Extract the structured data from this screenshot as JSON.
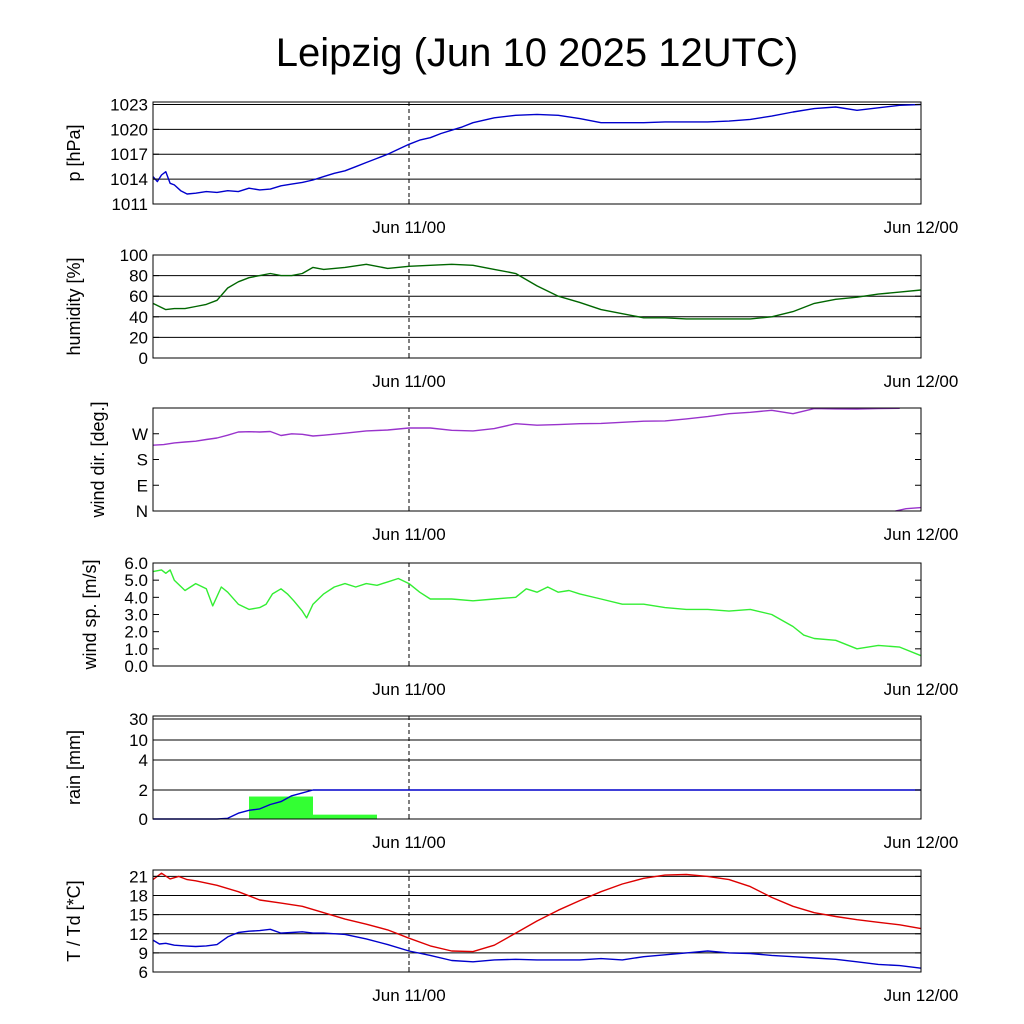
{
  "title": "Leipzig (Jun 10 2025 12UTC)",
  "x_axis": {
    "ticks": [
      "Jun 11/00",
      "Jun 12/00"
    ],
    "range_hours": [
      0,
      36
    ],
    "tick_hours": [
      12,
      36
    ],
    "vline_hours": 12
  },
  "chart_data": [
    {
      "type": "line",
      "id": "pressure",
      "ylabel": "p [hPa]",
      "ylim": [
        1011,
        1023.3
      ],
      "yticks": [
        1011,
        1014,
        1017,
        1020,
        1023
      ],
      "grid": true,
      "series": [
        {
          "color": "#0000cc",
          "x": [
            0,
            0.2,
            0.4,
            0.6,
            0.8,
            1.0,
            1.3,
            1.6,
            2.0,
            2.5,
            3.0,
            3.5,
            4.0,
            4.5,
            5.0,
            5.5,
            6.0,
            6.5,
            7.0,
            7.5,
            8.0,
            8.5,
            9.0,
            9.5,
            10.0,
            10.5,
            11.0,
            11.5,
            12.0,
            12.5,
            13.0,
            13.5,
            14.0,
            14.5,
            15.0,
            16.0,
            17.0,
            18.0,
            19.0,
            20.0,
            21.0,
            22.0,
            23.0,
            24.0,
            25.0,
            26.0,
            27.0,
            28.0,
            29.0,
            30.0,
            31.0,
            32.0,
            33.0,
            34.0,
            35.0,
            36.0
          ],
          "y": [
            1014.3,
            1013.7,
            1014.5,
            1014.9,
            1013.5,
            1013.3,
            1012.6,
            1012.2,
            1012.3,
            1012.5,
            1012.4,
            1012.6,
            1012.5,
            1012.9,
            1012.7,
            1012.8,
            1013.2,
            1013.4,
            1013.6,
            1013.9,
            1014.3,
            1014.7,
            1015.0,
            1015.5,
            1016.0,
            1016.5,
            1017.0,
            1017.6,
            1018.2,
            1018.7,
            1019.0,
            1019.5,
            1019.9,
            1020.3,
            1020.8,
            1021.4,
            1021.7,
            1021.8,
            1021.7,
            1021.3,
            1020.8,
            1020.8,
            1020.8,
            1020.9,
            1020.9,
            1020.9,
            1021.0,
            1021.2,
            1021.6,
            1022.1,
            1022.5,
            1022.7,
            1022.3,
            1022.6,
            1022.9,
            1023.0
          ]
        }
      ]
    },
    {
      "type": "line",
      "id": "humidity",
      "ylabel": "humidity [%]",
      "ylim": [
        0,
        100
      ],
      "yticks": [
        0,
        20,
        40,
        60,
        80,
        100
      ],
      "grid": true,
      "series": [
        {
          "color": "#006600",
          "x": [
            0,
            0.3,
            0.6,
            1.0,
            1.5,
            2.0,
            2.5,
            3.0,
            3.5,
            4.0,
            4.5,
            5.0,
            5.5,
            6.0,
            6.5,
            7.0,
            7.5,
            8.0,
            9.0,
            10.0,
            11.0,
            12.0,
            13.0,
            14.0,
            15.0,
            16.0,
            17.0,
            18.0,
            19.0,
            20.0,
            21.0,
            22.0,
            23.0,
            24.0,
            25.0,
            26.0,
            27.0,
            28.0,
            29.0,
            30.0,
            31.0,
            32.0,
            33.0,
            34.0,
            35.0,
            36.0
          ],
          "y": [
            53,
            50,
            47,
            48,
            48,
            50,
            52,
            56,
            68,
            74,
            78,
            80,
            82,
            80,
            80,
            82,
            88,
            86,
            88,
            91,
            87,
            89,
            90,
            91,
            90,
            86,
            82,
            70,
            60,
            54,
            47,
            43,
            39,
            39,
            38,
            38,
            38,
            38,
            40,
            45,
            53,
            57,
            59,
            62,
            64,
            66
          ]
        }
      ]
    },
    {
      "type": "line",
      "id": "wind_direction",
      "ylabel": "wind dir. [deg.]",
      "ylim": [
        0,
        360
      ],
      "yticks": [
        0,
        90,
        180,
        270
      ],
      "ytick_labels": [
        "N",
        "E",
        "S",
        "W"
      ],
      "grid": false,
      "series": [
        {
          "color": "#9933cc",
          "x": [
            0,
            0.5,
            1.0,
            1.5,
            2.0,
            2.5,
            3.0,
            3.5,
            4.0,
            4.5,
            5.0,
            5.5,
            6.0,
            6.5,
            7.0,
            7.5,
            8.0,
            9.0,
            10.0,
            11.0,
            12.0,
            13.0,
            14.0,
            15.0,
            16.0,
            17.0,
            18.0,
            19.0,
            20.0,
            21.0,
            22.0,
            23.0,
            24.0,
            25.0,
            26.0,
            27.0,
            28.0,
            29.0,
            30.0,
            31.0,
            32.0,
            33.0,
            34.0,
            35.0
          ],
          "y": [
            230,
            232,
            238,
            241,
            244,
            250,
            255,
            265,
            276,
            277,
            276,
            278,
            264,
            270,
            268,
            262,
            265,
            272,
            280,
            283,
            290,
            290,
            282,
            280,
            288,
            305,
            300,
            302,
            305,
            306,
            310,
            314,
            315,
            322,
            330,
            340,
            345,
            352,
            340,
            358,
            357,
            356,
            358,
            359
          ]
        },
        {
          "color": "#9933cc",
          "x": [
            34.8,
            35.3,
            36.0
          ],
          "y": [
            0,
            8,
            12
          ]
        }
      ]
    },
    {
      "type": "line",
      "id": "wind_speed",
      "ylabel": "wind sp. [m/s]",
      "ylim": [
        0,
        6.0
      ],
      "yticks": [
        0.0,
        1.0,
        2.0,
        3.0,
        4.0,
        5.0,
        6.0
      ],
      "ytick_labels": [
        "0.0",
        "1.0",
        "2.0",
        "3.0",
        "4.0",
        "5.0",
        "6.0"
      ],
      "grid": false,
      "series": [
        {
          "color": "#33ee33",
          "x": [
            0,
            0.4,
            0.6,
            0.8,
            1.0,
            1.5,
            2.0,
            2.5,
            2.8,
            3.2,
            3.5,
            4.0,
            4.5,
            5.0,
            5.3,
            5.6,
            6.0,
            6.3,
            6.6,
            7.0,
            7.2,
            7.5,
            8.0,
            8.5,
            9.0,
            9.5,
            10.0,
            10.5,
            11.0,
            11.5,
            12.0,
            12.5,
            13.0,
            14.0,
            15.0,
            16.0,
            17.0,
            17.5,
            18.0,
            18.5,
            19.0,
            19.5,
            20.0,
            21.0,
            22.0,
            23.0,
            24.0,
            25.0,
            26.0,
            27.0,
            28.0,
            29.0,
            30.0,
            30.5,
            31.0,
            32.0,
            33.0,
            34.0,
            35.0,
            36.0
          ],
          "y": [
            5.5,
            5.6,
            5.4,
            5.6,
            5.0,
            4.4,
            4.8,
            4.5,
            3.5,
            4.6,
            4.3,
            3.6,
            3.3,
            3.4,
            3.6,
            4.2,
            4.5,
            4.2,
            3.8,
            3.2,
            2.8,
            3.6,
            4.2,
            4.6,
            4.8,
            4.6,
            4.8,
            4.7,
            4.9,
            5.1,
            4.8,
            4.3,
            3.9,
            3.9,
            3.8,
            3.9,
            4.0,
            4.5,
            4.3,
            4.6,
            4.3,
            4.4,
            4.2,
            3.9,
            3.6,
            3.6,
            3.4,
            3.3,
            3.3,
            3.2,
            3.3,
            3.0,
            2.3,
            1.8,
            1.6,
            1.5,
            1.0,
            1.2,
            1.1,
            0.6
          ]
        }
      ]
    },
    {
      "type": "bar",
      "id": "rain",
      "ylabel": "rain [mm]",
      "yticks": [
        0,
        2,
        4,
        10,
        30
      ],
      "ytick_labels": [
        "0",
        "2",
        "4",
        "10",
        "30"
      ],
      "grid": true,
      "bars": [
        {
          "x0": 4.5,
          "x1": 7.5,
          "value": 1.55
        },
        {
          "x0": 7.5,
          "x1": 10.5,
          "value": 0.3
        }
      ],
      "bar_color": "#33ff33",
      "series": [
        {
          "color": "#0000cc",
          "x": [
            0,
            2.5,
            3.0,
            3.5,
            4.0,
            4.5,
            5.0,
            5.5,
            6.0,
            6.5,
            7.0,
            7.5,
            36.0
          ],
          "y": [
            0,
            0,
            0,
            0.05,
            0.4,
            0.6,
            0.7,
            1.0,
            1.2,
            1.6,
            1.8,
            2.0,
            2.0
          ]
        }
      ]
    },
    {
      "type": "line",
      "id": "temperature",
      "ylabel": "T / Td [*C]",
      "ylim": [
        6,
        22
      ],
      "yticks": [
        6,
        9,
        12,
        15,
        18,
        21
      ],
      "grid": true,
      "series": [
        {
          "color": "#dd0000",
          "x": [
            0,
            0.4,
            0.8,
            1.2,
            1.6,
            2.0,
            3.0,
            4.0,
            5.0,
            6.0,
            7.0,
            8.0,
            9.0,
            10.0,
            11.0,
            12.0,
            13.0,
            14.0,
            15.0,
            16.0,
            17.0,
            18.0,
            19.0,
            20.0,
            21.0,
            22.0,
            23.0,
            24.0,
            25.0,
            26.0,
            27.0,
            28.0,
            29.0,
            30.0,
            31.0,
            32.0,
            33.0,
            34.0,
            35.0,
            36.0
          ],
          "y": [
            20.5,
            21.5,
            20.6,
            21.0,
            20.5,
            20.3,
            19.6,
            18.6,
            17.3,
            16.8,
            16.3,
            15.3,
            14.3,
            13.5,
            12.6,
            11.3,
            10.1,
            9.3,
            9.2,
            10.2,
            12.1,
            14.0,
            15.7,
            17.2,
            18.6,
            19.8,
            20.7,
            21.2,
            21.3,
            21.0,
            20.5,
            19.4,
            17.7,
            16.3,
            15.3,
            14.7,
            14.2,
            13.8,
            13.4,
            12.8
          ]
        },
        {
          "color": "#0000cc",
          "x": [
            0,
            0.3,
            0.6,
            1.0,
            1.5,
            2.0,
            2.5,
            3.0,
            3.5,
            4.0,
            4.5,
            5.0,
            5.5,
            6.0,
            6.5,
            7.0,
            7.5,
            8.0,
            9.0,
            10.0,
            11.0,
            12.0,
            13.0,
            14.0,
            15.0,
            16.0,
            17.0,
            18.0,
            19.0,
            20.0,
            21.0,
            22.0,
            23.0,
            24.0,
            25.0,
            26.0,
            27.0,
            28.0,
            29.0,
            30.0,
            31.0,
            32.0,
            33.0,
            34.0,
            35.0,
            36.0
          ],
          "y": [
            11,
            10.4,
            10.5,
            10.2,
            10.1,
            10.0,
            10.1,
            10.3,
            11.5,
            12.2,
            12.4,
            12.5,
            12.7,
            12.1,
            12.2,
            12.3,
            12.1,
            12.1,
            11.9,
            11.2,
            10.3,
            9.3,
            8.6,
            7.8,
            7.6,
            7.9,
            8.0,
            7.9,
            7.9,
            7.9,
            8.1,
            7.9,
            8.4,
            8.7,
            9.0,
            9.3,
            9.0,
            8.9,
            8.6,
            8.4,
            8.2,
            8.0,
            7.6,
            7.2,
            7.0,
            6.6
          ]
        }
      ]
    }
  ]
}
